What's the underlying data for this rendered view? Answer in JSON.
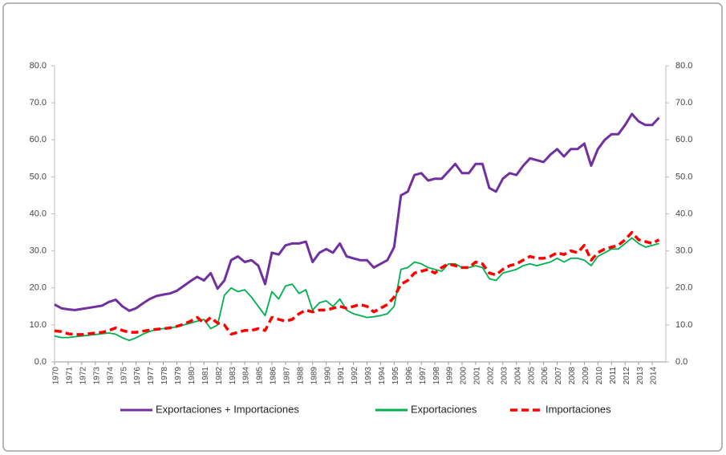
{
  "chart_data": {
    "type": "line",
    "x": [
      1970,
      1970.5,
      1971,
      1971.5,
      1972,
      1972.5,
      1973,
      1973.5,
      1974,
      1974.5,
      1975,
      1975.5,
      1976,
      1976.5,
      1977,
      1977.5,
      1978,
      1978.5,
      1979,
      1979.5,
      1980,
      1980.5,
      1981,
      1981.5,
      1982,
      1982.5,
      1983,
      1983.5,
      1984,
      1984.5,
      1985,
      1985.5,
      1986,
      1986.5,
      1987,
      1987.5,
      1988,
      1988.5,
      1989,
      1989.5,
      1990,
      1990.5,
      1991,
      1991.5,
      1992,
      1992.5,
      1993,
      1993.5,
      1994,
      1994.5,
      1995,
      1995.5,
      1996,
      1996.5,
      1997,
      1997.5,
      1998,
      1998.5,
      1999,
      1999.5,
      2000,
      2000.5,
      2001,
      2001.5,
      2002,
      2002.5,
      2003,
      2003.5,
      2004,
      2004.5,
      2005,
      2005.5,
      2006,
      2006.5,
      2007,
      2007.5,
      2008,
      2008.5,
      2009,
      2009.5,
      2010,
      2010.5,
      2011,
      2011.5,
      2012,
      2012.5,
      2013,
      2013.5,
      2014,
      2014.5
    ],
    "xlim": [
      1970,
      2015
    ],
    "xticks": [
      1970,
      1971,
      1972,
      1973,
      1974,
      1975,
      1976,
      1977,
      1978,
      1979,
      1980,
      1981,
      1982,
      1983,
      1984,
      1985,
      1986,
      1987,
      1988,
      1989,
      1990,
      1991,
      1992,
      1993,
      1994,
      1995,
      1996,
      1997,
      1998,
      1999,
      2000,
      2001,
      2002,
      2003,
      2004,
      2005,
      2006,
      2007,
      2008,
      2009,
      2010,
      2011,
      2012,
      2013,
      2014
    ],
    "ylim": [
      0,
      80
    ],
    "yticks": [
      {
        "value": 0,
        "label": "0.0"
      },
      {
        "value": 10,
        "label": "10.0"
      },
      {
        "value": 20,
        "label": "20.0"
      },
      {
        "value": 30,
        "label": "30.0"
      },
      {
        "value": 40,
        "label": "40.0"
      },
      {
        "value": 50,
        "label": "50.0"
      },
      {
        "value": 60,
        "label": "60.0"
      },
      {
        "value": 70,
        "label": "70.0"
      },
      {
        "value": 80,
        "label": "80.0"
      }
    ],
    "y2lim": [
      0,
      80
    ],
    "y2ticks": [
      {
        "value": 0,
        "label": "0.0"
      },
      {
        "value": 10,
        "label": "10.0"
      },
      {
        "value": 20,
        "label": "20.0"
      },
      {
        "value": 30,
        "label": "30.0"
      },
      {
        "value": 40,
        "label": "40.0"
      },
      {
        "value": 50,
        "label": "50.0"
      },
      {
        "value": 60,
        "label": "60.0"
      },
      {
        "value": 70,
        "label": "70.0"
      },
      {
        "value": 80,
        "label": "80.0"
      }
    ],
    "grid": false,
    "legend": "bottom",
    "series": [
      {
        "name": "Exportaciones + Importaciones",
        "color": "#7030a0",
        "style": "solid",
        "values": [
          15.5,
          14.5,
          14.2,
          14.0,
          14.3,
          14.6,
          14.9,
          15.2,
          16.2,
          16.8,
          15.0,
          13.8,
          14.5,
          15.8,
          17.0,
          17.8,
          18.2,
          18.5,
          19.2,
          20.5,
          21.8,
          23.0,
          22.0,
          24.0,
          19.8,
          22.0,
          27.5,
          28.5,
          27.0,
          27.5,
          26.0,
          21.0,
          29.5,
          29.0,
          31.5,
          32.0,
          32.0,
          32.5,
          27.0,
          29.5,
          30.5,
          29.5,
          32.0,
          28.5,
          28.0,
          27.5,
          27.5,
          25.5,
          26.5,
          27.5,
          31.0,
          45.0,
          46.0,
          50.5,
          51.0,
          49.0,
          49.5,
          49.5,
          51.5,
          53.5,
          51.0,
          51.0,
          53.5,
          53.5,
          47.0,
          46.0,
          49.5,
          51.0,
          50.5,
          53.0,
          55.0,
          54.5,
          54.0,
          56.0,
          57.5,
          55.5,
          57.5,
          57.5,
          59.0,
          53.0,
          57.5,
          60.0,
          61.5,
          61.5,
          64.0,
          67.0,
          65.0,
          64.0,
          64.0,
          66.0
        ]
      },
      {
        "name": "Exportaciones",
        "color": "#00b050",
        "style": "solid",
        "values": [
          7.0,
          6.6,
          6.6,
          6.8,
          7.0,
          7.2,
          7.4,
          7.6,
          7.8,
          7.5,
          6.5,
          5.8,
          6.5,
          7.5,
          8.2,
          8.8,
          9.0,
          9.2,
          9.5,
          10.0,
          10.5,
          11.0,
          11.5,
          9.0,
          10.0,
          18.0,
          20.0,
          19.0,
          19.5,
          17.5,
          15.0,
          12.5,
          19.0,
          17.0,
          20.5,
          21.0,
          18.5,
          19.5,
          14.0,
          16.0,
          16.5,
          15.0,
          17.0,
          14.0,
          13.0,
          12.5,
          12.0,
          12.2,
          12.5,
          13.0,
          15.0,
          25.0,
          25.5,
          27.0,
          26.5,
          25.5,
          25.0,
          24.5,
          26.5,
          26.5,
          25.5,
          25.5,
          26.0,
          25.5,
          22.5,
          22.0,
          24.0,
          24.5,
          25.0,
          26.0,
          26.5,
          26.0,
          26.5,
          27.0,
          28.0,
          27.0,
          28.0,
          28.0,
          27.5,
          26.0,
          28.5,
          29.5,
          30.5,
          30.5,
          32.0,
          33.5,
          32.0,
          31.0,
          31.5,
          32.0
        ]
      },
      {
        "name": "Importaciones",
        "color": "#ff0000",
        "style": "dashed",
        "values": [
          8.4,
          8.2,
          7.6,
          7.4,
          7.4,
          7.6,
          7.8,
          8.0,
          8.5,
          9.2,
          8.5,
          8.0,
          8.0,
          8.3,
          8.6,
          8.8,
          9.0,
          9.2,
          9.6,
          10.2,
          11.0,
          12.0,
          10.5,
          12.0,
          10.5,
          10.0,
          7.5,
          8.0,
          8.5,
          8.5,
          9.0,
          8.5,
          12.0,
          11.5,
          11.0,
          11.5,
          13.0,
          14.0,
          13.5,
          14.0,
          14.0,
          14.5,
          15.0,
          14.5,
          15.0,
          15.5,
          15.0,
          13.5,
          14.5,
          15.5,
          17.5,
          21.0,
          22.0,
          24.0,
          24.5,
          25.0,
          24.0,
          25.5,
          26.5,
          26.0,
          25.5,
          25.5,
          27.0,
          26.5,
          24.0,
          23.5,
          25.0,
          26.0,
          26.5,
          27.5,
          28.5,
          28.0,
          28.0,
          28.5,
          29.5,
          29.0,
          30.0,
          29.5,
          31.5,
          27.5,
          29.5,
          30.5,
          31.0,
          31.5,
          33.0,
          35.0,
          33.0,
          32.5,
          32.0,
          33.0
        ]
      }
    ]
  }
}
